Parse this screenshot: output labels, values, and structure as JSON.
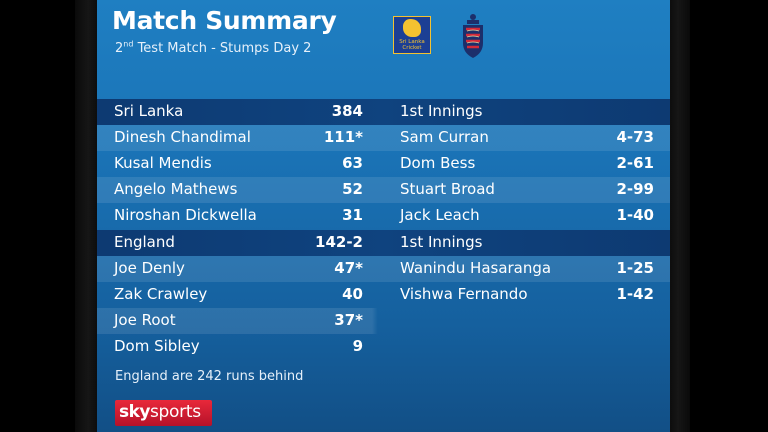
{
  "header": {
    "title": "Match Summary",
    "subtitle_ord": "2",
    "subtitle_sup": "nd",
    "subtitle_rest": "Test Match - Stumps Day 2",
    "logo_sl_line1": "Sri Lanka",
    "logo_sl_line2": "Cricket"
  },
  "rows": [
    {
      "left_name": "Sri Lanka",
      "left_score": "384",
      "right_name": "1st Innings",
      "right_score": ""
    },
    {
      "left_name": "Dinesh Chandimal",
      "left_score": "111*",
      "right_name": "Sam Curran",
      "right_score": "4-73"
    },
    {
      "left_name": "Kusal Mendis",
      "left_score": "63",
      "right_name": "Dom Bess",
      "right_score": "2-61"
    },
    {
      "left_name": "Angelo Mathews",
      "left_score": "52",
      "right_name": "Stuart Broad",
      "right_score": "2-99"
    },
    {
      "left_name": "Niroshan Dickwella",
      "left_score": "31",
      "right_name": "Jack Leach",
      "right_score": "1-40"
    },
    {
      "left_name": "England",
      "left_score": "142-2",
      "right_name": "1st Innings",
      "right_score": ""
    },
    {
      "left_name": "Joe Denly",
      "left_score": "47*",
      "right_name": "Wanindu Hasaranga",
      "right_score": "1-25"
    },
    {
      "left_name": "Zak Crawley",
      "left_score": "40",
      "right_name": "Vishwa Fernando",
      "right_score": "1-42"
    },
    {
      "left_name": "Joe Root",
      "left_score": "37*",
      "right_name": "",
      "right_score": ""
    },
    {
      "left_name": "Dom Sibley",
      "left_score": "9",
      "right_name": "",
      "right_score": ""
    }
  ],
  "footnote": "England are 242 runs behind",
  "brand": {
    "sky": "sky",
    "sports": "sports"
  },
  "colors": {
    "panel": "#1a73b6",
    "header_bar": "#0d3a72",
    "brand_red": "#e8283a"
  }
}
